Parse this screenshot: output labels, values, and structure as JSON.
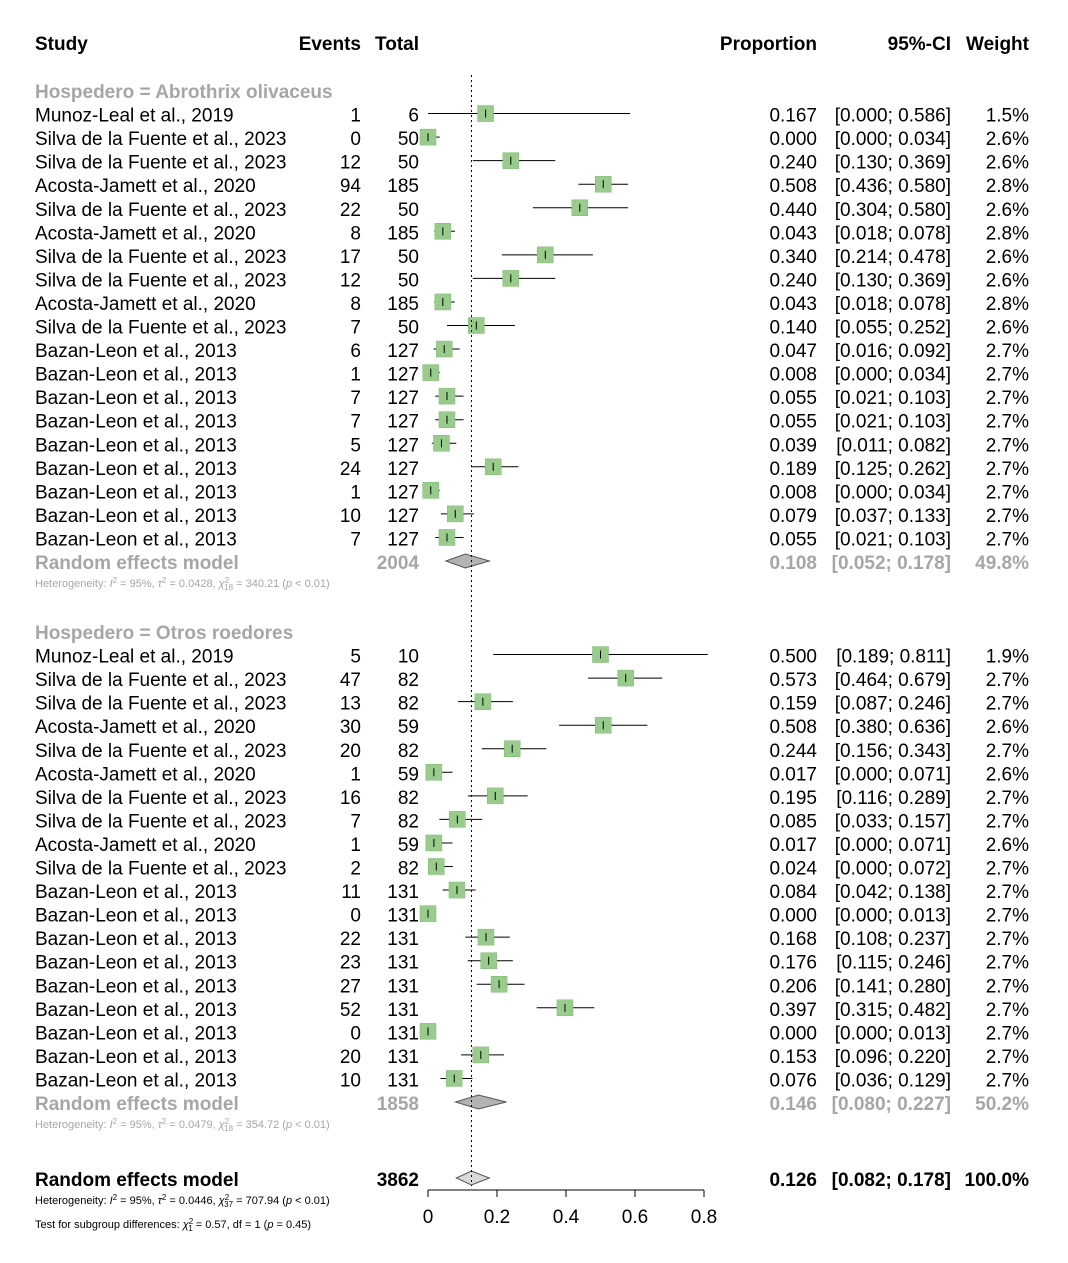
{
  "chart_data": {
    "type": "forest",
    "columns": {
      "study": "Study",
      "events": "Events",
      "total": "Total",
      "proportion": "Proportion",
      "ci": "95%-CI",
      "weight": "Weight"
    },
    "xlim": [
      0,
      0.8
    ],
    "xticks": [
      "0",
      "0.2",
      "0.4",
      "0.6",
      "0.8"
    ],
    "xtick_values": [
      0,
      0.2,
      0.4,
      0.6,
      0.8
    ],
    "reference_line": 0.126,
    "subgroups": [
      {
        "label": "Hospedero = Abrothrix olivaceus",
        "studies": [
          {
            "study": "Munoz-Leal et al., 2019",
            "events": "1",
            "total": "6",
            "prop": 0.167,
            "lo": 0.0,
            "hi": 0.586,
            "prop_text": "0.167",
            "ci_text": "[0.000; 0.586]",
            "weight_text": "1.5%"
          },
          {
            "study": "Silva de la Fuente et al., 2023",
            "events": "0",
            "total": "50",
            "prop": 0.0,
            "lo": 0.0,
            "hi": 0.034,
            "prop_text": "0.000",
            "ci_text": "[0.000; 0.034]",
            "weight_text": "2.6%"
          },
          {
            "study": "Silva de la Fuente et al., 2023",
            "events": "12",
            "total": "50",
            "prop": 0.24,
            "lo": 0.13,
            "hi": 0.369,
            "prop_text": "0.240",
            "ci_text": "[0.130; 0.369]",
            "weight_text": "2.6%"
          },
          {
            "study": "Acosta-Jamett et al., 2020",
            "events": "94",
            "total": "185",
            "prop": 0.508,
            "lo": 0.436,
            "hi": 0.58,
            "prop_text": "0.508",
            "ci_text": "[0.436; 0.580]",
            "weight_text": "2.8%"
          },
          {
            "study": "Silva de la Fuente et al., 2023",
            "events": "22",
            "total": "50",
            "prop": 0.44,
            "lo": 0.304,
            "hi": 0.58,
            "prop_text": "0.440",
            "ci_text": "[0.304; 0.580]",
            "weight_text": "2.6%"
          },
          {
            "study": "Acosta-Jamett et al., 2020",
            "events": "8",
            "total": "185",
            "prop": 0.043,
            "lo": 0.018,
            "hi": 0.078,
            "prop_text": "0.043",
            "ci_text": "[0.018; 0.078]",
            "weight_text": "2.8%"
          },
          {
            "study": "Silva de la Fuente et al., 2023",
            "events": "17",
            "total": "50",
            "prop": 0.34,
            "lo": 0.214,
            "hi": 0.478,
            "prop_text": "0.340",
            "ci_text": "[0.214; 0.478]",
            "weight_text": "2.6%"
          },
          {
            "study": "Silva de la Fuente et al., 2023",
            "events": "12",
            "total": "50",
            "prop": 0.24,
            "lo": 0.13,
            "hi": 0.369,
            "prop_text": "0.240",
            "ci_text": "[0.130; 0.369]",
            "weight_text": "2.6%"
          },
          {
            "study": "Acosta-Jamett et al., 2020",
            "events": "8",
            "total": "185",
            "prop": 0.043,
            "lo": 0.018,
            "hi": 0.078,
            "prop_text": "0.043",
            "ci_text": "[0.018; 0.078]",
            "weight_text": "2.8%"
          },
          {
            "study": "Silva de la Fuente et al., 2023",
            "events": "7",
            "total": "50",
            "prop": 0.14,
            "lo": 0.055,
            "hi": 0.252,
            "prop_text": "0.140",
            "ci_text": "[0.055; 0.252]",
            "weight_text": "2.6%"
          },
          {
            "study": "Bazan-Leon et al., 2013",
            "events": "6",
            "total": "127",
            "prop": 0.047,
            "lo": 0.016,
            "hi": 0.092,
            "prop_text": "0.047",
            "ci_text": "[0.016; 0.092]",
            "weight_text": "2.7%"
          },
          {
            "study": "Bazan-Leon et al., 2013",
            "events": "1",
            "total": "127",
            "prop": 0.008,
            "lo": 0.0,
            "hi": 0.034,
            "prop_text": "0.008",
            "ci_text": "[0.000; 0.034]",
            "weight_text": "2.7%"
          },
          {
            "study": "Bazan-Leon et al., 2013",
            "events": "7",
            "total": "127",
            "prop": 0.055,
            "lo": 0.021,
            "hi": 0.103,
            "prop_text": "0.055",
            "ci_text": "[0.021; 0.103]",
            "weight_text": "2.7%"
          },
          {
            "study": "Bazan-Leon et al., 2013",
            "events": "7",
            "total": "127",
            "prop": 0.055,
            "lo": 0.021,
            "hi": 0.103,
            "prop_text": "0.055",
            "ci_text": "[0.021; 0.103]",
            "weight_text": "2.7%"
          },
          {
            "study": "Bazan-Leon et al., 2013",
            "events": "5",
            "total": "127",
            "prop": 0.039,
            "lo": 0.011,
            "hi": 0.082,
            "prop_text": "0.039",
            "ci_text": "[0.011; 0.082]",
            "weight_text": "2.7%"
          },
          {
            "study": "Bazan-Leon et al., 2013",
            "events": "24",
            "total": "127",
            "prop": 0.189,
            "lo": 0.125,
            "hi": 0.262,
            "prop_text": "0.189",
            "ci_text": "[0.125; 0.262]",
            "weight_text": "2.7%"
          },
          {
            "study": "Bazan-Leon et al., 2013",
            "events": "1",
            "total": "127",
            "prop": 0.008,
            "lo": 0.0,
            "hi": 0.034,
            "prop_text": "0.008",
            "ci_text": "[0.000; 0.034]",
            "weight_text": "2.7%"
          },
          {
            "study": "Bazan-Leon et al., 2013",
            "events": "10",
            "total": "127",
            "prop": 0.079,
            "lo": 0.037,
            "hi": 0.133,
            "prop_text": "0.079",
            "ci_text": "[0.037; 0.133]",
            "weight_text": "2.7%"
          },
          {
            "study": "Bazan-Leon et al., 2013",
            "events": "7",
            "total": "127",
            "prop": 0.055,
            "lo": 0.021,
            "hi": 0.103,
            "prop_text": "0.055",
            "ci_text": "[0.021; 0.103]",
            "weight_text": "2.7%"
          }
        ],
        "model": {
          "label": "Random effects model",
          "total": "2004",
          "prop": 0.108,
          "lo": 0.052,
          "hi": 0.178,
          "prop_text": "0.108",
          "ci_text": "[0.052; 0.178]",
          "weight_text": "49.8%"
        },
        "heterogeneity": {
          "prefix": "Heterogeneity: ",
          "i2_sym": "I",
          "i2_val": " = 95%, ",
          "tau_sym": "τ",
          "tau_val": " = 0.0428, ",
          "chi_sym": "χ",
          "chi_df": "18",
          "chi_val": " = 340.21 (",
          "p_sym": "p",
          "p_val": " < 0.01)"
        }
      },
      {
        "label": "Hospedero = Otros roedores",
        "studies": [
          {
            "study": "Munoz-Leal et al., 2019",
            "events": "5",
            "total": "10",
            "prop": 0.5,
            "lo": 0.189,
            "hi": 0.811,
            "prop_text": "0.500",
            "ci_text": "[0.189; 0.811]",
            "weight_text": "1.9%"
          },
          {
            "study": "Silva de la Fuente et al., 2023",
            "events": "47",
            "total": "82",
            "prop": 0.573,
            "lo": 0.464,
            "hi": 0.679,
            "prop_text": "0.573",
            "ci_text": "[0.464; 0.679]",
            "weight_text": "2.7%"
          },
          {
            "study": "Silva de la Fuente et al., 2023",
            "events": "13",
            "total": "82",
            "prop": 0.159,
            "lo": 0.087,
            "hi": 0.246,
            "prop_text": "0.159",
            "ci_text": "[0.087; 0.246]",
            "weight_text": "2.7%"
          },
          {
            "study": "Acosta-Jamett et al., 2020",
            "events": "30",
            "total": "59",
            "prop": 0.508,
            "lo": 0.38,
            "hi": 0.636,
            "prop_text": "0.508",
            "ci_text": "[0.380; 0.636]",
            "weight_text": "2.6%"
          },
          {
            "study": "Silva de la Fuente et al., 2023",
            "events": "20",
            "total": "82",
            "prop": 0.244,
            "lo": 0.156,
            "hi": 0.343,
            "prop_text": "0.244",
            "ci_text": "[0.156; 0.343]",
            "weight_text": "2.7%"
          },
          {
            "study": "Acosta-Jamett et al., 2020",
            "events": "1",
            "total": "59",
            "prop": 0.017,
            "lo": 0.0,
            "hi": 0.071,
            "prop_text": "0.017",
            "ci_text": "[0.000; 0.071]",
            "weight_text": "2.6%"
          },
          {
            "study": "Silva de la Fuente et al., 2023",
            "events": "16",
            "total": "82",
            "prop": 0.195,
            "lo": 0.116,
            "hi": 0.289,
            "prop_text": "0.195",
            "ci_text": "[0.116; 0.289]",
            "weight_text": "2.7%"
          },
          {
            "study": "Silva de la Fuente et al., 2023",
            "events": "7",
            "total": "82",
            "prop": 0.085,
            "lo": 0.033,
            "hi": 0.157,
            "prop_text": "0.085",
            "ci_text": "[0.033; 0.157]",
            "weight_text": "2.7%"
          },
          {
            "study": "Acosta-Jamett et al., 2020",
            "events": "1",
            "total": "59",
            "prop": 0.017,
            "lo": 0.0,
            "hi": 0.071,
            "prop_text": "0.017",
            "ci_text": "[0.000; 0.071]",
            "weight_text": "2.6%"
          },
          {
            "study": "Silva de la Fuente et al., 2023",
            "events": "2",
            "total": "82",
            "prop": 0.024,
            "lo": 0.0,
            "hi": 0.072,
            "prop_text": "0.024",
            "ci_text": "[0.000; 0.072]",
            "weight_text": "2.7%"
          },
          {
            "study": "Bazan-Leon et al., 2013",
            "events": "11",
            "total": "131",
            "prop": 0.084,
            "lo": 0.042,
            "hi": 0.138,
            "prop_text": "0.084",
            "ci_text": "[0.042; 0.138]",
            "weight_text": "2.7%"
          },
          {
            "study": "Bazan-Leon et al., 2013",
            "events": "0",
            "total": "131",
            "prop": 0.0,
            "lo": 0.0,
            "hi": 0.013,
            "prop_text": "0.000",
            "ci_text": "[0.000; 0.013]",
            "weight_text": "2.7%"
          },
          {
            "study": "Bazan-Leon et al., 2013",
            "events": "22",
            "total": "131",
            "prop": 0.168,
            "lo": 0.108,
            "hi": 0.237,
            "prop_text": "0.168",
            "ci_text": "[0.108; 0.237]",
            "weight_text": "2.7%"
          },
          {
            "study": "Bazan-Leon et al., 2013",
            "events": "23",
            "total": "131",
            "prop": 0.176,
            "lo": 0.115,
            "hi": 0.246,
            "prop_text": "0.176",
            "ci_text": "[0.115; 0.246]",
            "weight_text": "2.7%"
          },
          {
            "study": "Bazan-Leon et al., 2013",
            "events": "27",
            "total": "131",
            "prop": 0.206,
            "lo": 0.141,
            "hi": 0.28,
            "prop_text": "0.206",
            "ci_text": "[0.141; 0.280]",
            "weight_text": "2.7%"
          },
          {
            "study": "Bazan-Leon et al., 2013",
            "events": "52",
            "total": "131",
            "prop": 0.397,
            "lo": 0.315,
            "hi": 0.482,
            "prop_text": "0.397",
            "ci_text": "[0.315; 0.482]",
            "weight_text": "2.7%"
          },
          {
            "study": "Bazan-Leon et al., 2013",
            "events": "0",
            "total": "131",
            "prop": 0.0,
            "lo": 0.0,
            "hi": 0.013,
            "prop_text": "0.000",
            "ci_text": "[0.000; 0.013]",
            "weight_text": "2.7%"
          },
          {
            "study": "Bazan-Leon et al., 2013",
            "events": "20",
            "total": "131",
            "prop": 0.153,
            "lo": 0.096,
            "hi": 0.22,
            "prop_text": "0.153",
            "ci_text": "[0.096; 0.220]",
            "weight_text": "2.7%"
          },
          {
            "study": "Bazan-Leon et al., 2013",
            "events": "10",
            "total": "131",
            "prop": 0.076,
            "lo": 0.036,
            "hi": 0.129,
            "prop_text": "0.076",
            "ci_text": "[0.036; 0.129]",
            "weight_text": "2.7%"
          }
        ],
        "model": {
          "label": "Random effects model",
          "total": "1858",
          "prop": 0.146,
          "lo": 0.08,
          "hi": 0.227,
          "prop_text": "0.146",
          "ci_text": "[0.080; 0.227]",
          "weight_text": "50.2%"
        },
        "heterogeneity": {
          "prefix": "Heterogeneity: ",
          "i2_sym": "I",
          "i2_val": " = 95%, ",
          "tau_sym": "τ",
          "tau_val": " = 0.0479, ",
          "chi_sym": "χ",
          "chi_df": "18",
          "chi_val": " = 354.72 (",
          "p_sym": "p",
          "p_val": " < 0.01)"
        }
      }
    ],
    "overall": {
      "label": "Random effects model",
      "total": "3862",
      "prop": 0.126,
      "lo": 0.082,
      "hi": 0.178,
      "prop_text": "0.126",
      "ci_text": "[0.082; 0.178]",
      "weight_text": "100.0%",
      "heterogeneity": {
        "prefix": "Heterogeneity: ",
        "i2_sym": "I",
        "i2_val": " = 95%, ",
        "tau_sym": "τ",
        "tau_val": " = 0.0446, ",
        "chi_sym": "χ",
        "chi_df": "37",
        "chi_val": " = 707.94 (",
        "p_sym": "p",
        "p_val": " < 0.01)"
      },
      "subgroup_test": {
        "prefix": "Test for subgroup differences: ",
        "chi_sym": "χ",
        "chi_df": "1",
        "chi_val": " = 0.57, df = 1 (",
        "p_sym": "p",
        "p_val": " = 0.45)"
      }
    },
    "colors": {
      "box": "#99cc8c",
      "box_stroke": "#7fb872",
      "diamond_sub": "#b3b3b3",
      "diamond_overall": "#d9d9d9",
      "grey_text": "#a6a6a6"
    }
  }
}
